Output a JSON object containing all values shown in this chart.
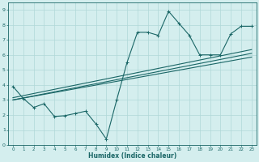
{
  "xlabel": "Humidex (Indice chaleur)",
  "bg_color": "#d4eeee",
  "grid_color": "#b0d8d8",
  "line_color": "#1a6666",
  "xlim": [
    -0.5,
    23.5
  ],
  "ylim": [
    0,
    9.5
  ],
  "xticks": [
    0,
    1,
    2,
    3,
    4,
    5,
    6,
    7,
    8,
    9,
    10,
    11,
    12,
    13,
    14,
    15,
    16,
    17,
    18,
    19,
    20,
    21,
    22,
    23
  ],
  "yticks": [
    0,
    1,
    2,
    3,
    4,
    5,
    6,
    7,
    8,
    9
  ],
  "scatter_x": [
    0,
    1,
    2,
    3,
    4,
    5,
    6,
    7,
    8,
    9,
    10,
    11,
    12,
    13,
    14,
    15,
    16,
    17,
    18,
    19,
    20,
    21,
    22,
    23
  ],
  "scatter_y": [
    3.9,
    3.1,
    2.5,
    2.75,
    1.9,
    1.95,
    2.1,
    2.25,
    1.4,
    0.4,
    3.0,
    5.5,
    7.5,
    7.5,
    7.3,
    8.9,
    8.1,
    7.3,
    6.0,
    6.0,
    6.0,
    7.4,
    7.9,
    7.9
  ],
  "reg_lines": [
    {
      "x0": 0,
      "y0": 3.0,
      "x1": 23,
      "y1": 6.1
    },
    {
      "x0": 0,
      "y0": 3.0,
      "x1": 23,
      "y1": 5.85
    },
    {
      "x0": 0,
      "y0": 3.15,
      "x1": 23,
      "y1": 6.35
    }
  ]
}
